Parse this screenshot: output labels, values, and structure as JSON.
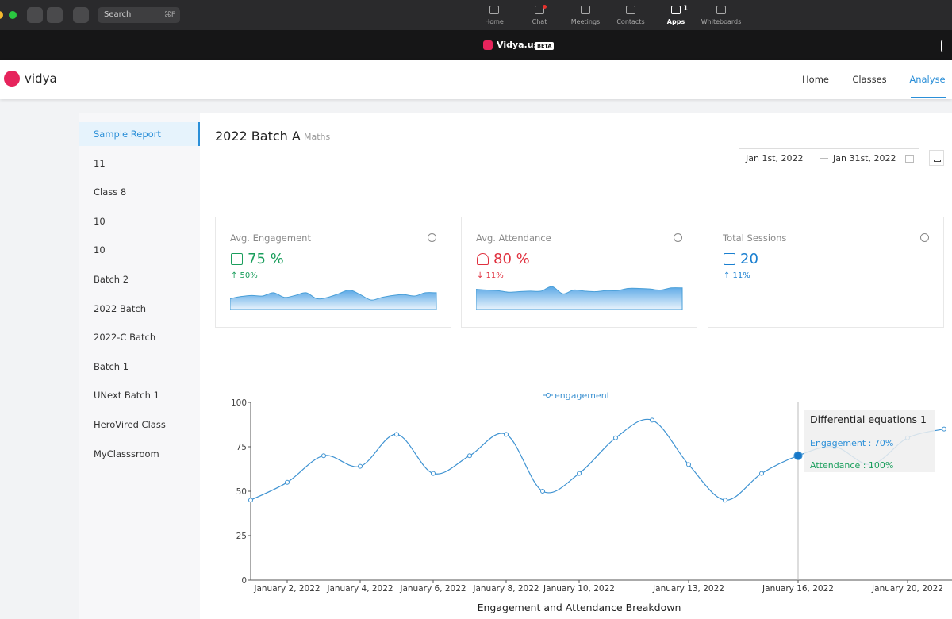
{
  "toolbar": {
    "search": "Search",
    "shortcut": "⌘F",
    "tabs": [
      {
        "label": "Home"
      },
      {
        "label": "Chat"
      },
      {
        "label": "Meetings"
      },
      {
        "label": "Contacts"
      },
      {
        "label": "Apps",
        "badge": "1"
      },
      {
        "label": "Whiteboards"
      }
    ]
  },
  "window": {
    "title": "Vidya.us",
    "badge": "BETA"
  },
  "header": {
    "brand": "vidya",
    "nav": [
      "Home",
      "Classes",
      "Analyse"
    ],
    "active": 2
  },
  "sidebar": {
    "items": [
      "Sample Report",
      "11",
      "Class 8",
      "10",
      "10",
      "Batch 2",
      "2022 Batch",
      "2022-C Batch",
      "Batch 1",
      "UNext Batch 1",
      "HeroVired Class",
      "MyClasssroom"
    ],
    "active": 0
  },
  "report": {
    "title": "2022 Batch A",
    "subject": "Maths",
    "date_from": "Jan 1st, 2022",
    "date_to": "Jan 31st, 2022"
  },
  "cards": [
    {
      "label": "Avg. Engagement",
      "value": "75 %",
      "change": "↑ 50%",
      "color": "#1a9e5c",
      "trend": [
        40,
        48,
        52,
        50,
        62,
        45,
        52,
        62,
        40,
        45,
        58,
        72,
        55,
        35,
        45,
        52,
        55,
        50,
        62,
        62
      ]
    },
    {
      "label": "Avg. Attendance",
      "value": "80 %",
      "change": "↓ 11%",
      "color": "#e0313f",
      "trend": [
        75,
        72,
        70,
        64,
        66,
        68,
        68,
        85,
        58,
        72,
        68,
        66,
        70,
        70,
        78,
        78,
        76,
        72,
        80,
        80
      ]
    },
    {
      "label": "Total Sessions",
      "value": "20",
      "change": "↑ 11%",
      "color": "#1a7fd0"
    }
  ],
  "chart_data": {
    "type": "line",
    "title": "Engagement and Attendance Breakdown",
    "categories": [
      null,
      "January 2, 2022",
      null,
      "January 4, 2022",
      null,
      "January 6, 2022",
      null,
      "January 8, 2022",
      null,
      "January 10, 2022",
      null,
      null,
      "January 13, 2022",
      null,
      null,
      "January 16, 2022",
      null,
      null,
      "January 20, 2022",
      null
    ],
    "series": [
      {
        "name": "engagement",
        "color": "#3f93d2",
        "values": [
          45,
          55,
          70,
          64,
          82,
          60,
          70,
          82,
          50,
          60,
          80,
          90,
          65,
          45,
          60,
          70,
          75,
          65,
          80,
          85
        ]
      }
    ],
    "ylim": [
      0,
      100
    ],
    "yticks": [
      0,
      25,
      50,
      75,
      100
    ],
    "tooltip": {
      "index": 15,
      "title": "Differential equations 1",
      "lines": [
        "Engagement : 70%",
        "Attendance : 100%"
      ]
    }
  }
}
